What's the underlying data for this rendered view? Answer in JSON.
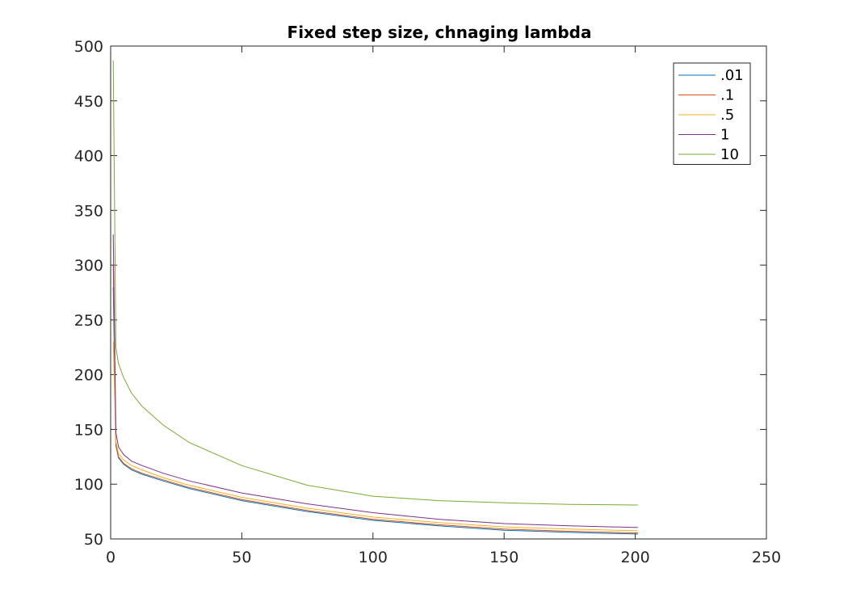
{
  "chart_data": {
    "type": "line",
    "title": "Fixed step size, chnaging lambda",
    "xlabel": "",
    "ylabel": "",
    "xlim": [
      0,
      250
    ],
    "ylim": [
      50,
      500
    ],
    "xticks": [
      0,
      50,
      100,
      150,
      200,
      250
    ],
    "yticks": [
      50,
      100,
      150,
      200,
      250,
      300,
      350,
      400,
      450,
      500
    ],
    "x": [
      1,
      2,
      3,
      5,
      8,
      12,
      20,
      30,
      50,
      75,
      100,
      125,
      150,
      175,
      200,
      201
    ],
    "series": [
      {
        "name": ".01",
        "color": "#0072BD",
        "values": [
          280,
          135,
          124,
          118,
          113,
          109,
          103,
          96,
          85,
          75,
          67,
          62,
          58,
          56,
          54.5,
          54.5
        ]
      },
      {
        "name": ".1",
        "color": "#D95319",
        "values": [
          300,
          136,
          125,
          119,
          114,
          110,
          104,
          97,
          86,
          76,
          68,
          63,
          59,
          57,
          55.5,
          55.5
        ]
      },
      {
        "name": ".5",
        "color": "#EDB120",
        "values": [
          230,
          139,
          128,
          122,
          117,
          113,
          106,
          99,
          88,
          78,
          70,
          65,
          61,
          59,
          57.5,
          57.5
        ]
      },
      {
        "name": "1",
        "color": "#7E2F8E",
        "values": [
          328,
          147,
          134,
          127,
          121,
          117,
          110,
          103,
          92,
          82,
          74,
          68,
          64,
          62,
          60.5,
          60.5
        ]
      },
      {
        "name": "10",
        "color": "#77AC30",
        "values": [
          487,
          225,
          210,
          197,
          183,
          171,
          154,
          138,
          117,
          99,
          89,
          85,
          83,
          81.5,
          81,
          81
        ]
      }
    ],
    "legend": {
      "position": "top-right",
      "entries": [
        ".01",
        ".1",
        ".5",
        "1",
        "10"
      ]
    },
    "grid": false
  }
}
